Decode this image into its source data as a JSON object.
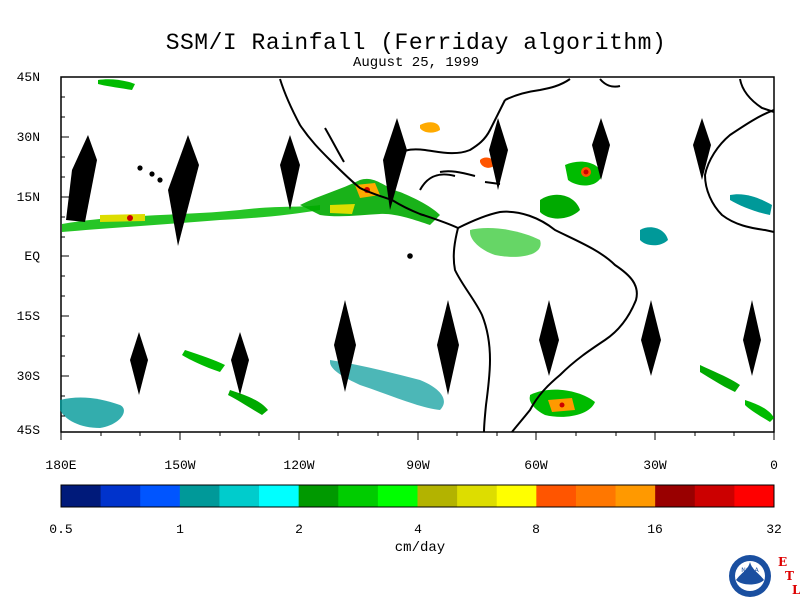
{
  "title": "SSM/I Rainfall (Ferriday algorithm)",
  "subtitle": "August 25, 1999",
  "map": {
    "lat_labels": [
      "45N",
      "30N",
      "15N",
      "EQ",
      "15S",
      "30S",
      "45S"
    ],
    "lon_labels": [
      "180E",
      "150W",
      "120W",
      "90W",
      "60W",
      "30W",
      "0"
    ]
  },
  "colorbar": {
    "unit": "cm/day",
    "tick_labels": [
      "0.5",
      "1",
      "2",
      "4",
      "8",
      "16",
      "32"
    ],
    "colors": [
      "#001a7a",
      "#0033cc",
      "#0055ff",
      "#009999",
      "#00cccc",
      "#00ffff",
      "#009900",
      "#00cc00",
      "#00ff00",
      "#b3b300",
      "#dddd00",
      "#ffff00",
      "#ff5500",
      "#ff7700",
      "#ff9900",
      "#990000",
      "#cc0000",
      "#ff0000"
    ]
  },
  "logo": {
    "org": "NOAA",
    "letters": [
      "E",
      "T",
      "L"
    ]
  }
}
